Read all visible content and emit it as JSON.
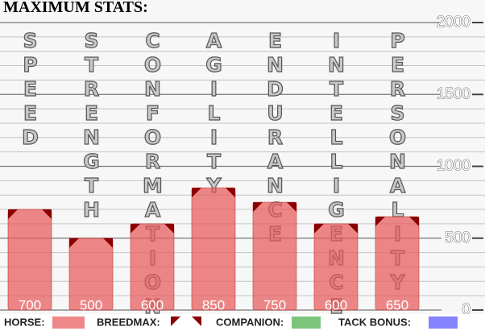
{
  "chart_data": {
    "type": "bar",
    "title": "MAXIMUM STATS:",
    "categories": [
      "SPEED",
      "STRENGTH",
      "CONFORMATION",
      "AGILITY",
      "ENDURANCE",
      "INTELLIGENCE",
      "PERSONALITY"
    ],
    "series": [
      {
        "name": "HORSE:",
        "color": "#e85a5a",
        "values": [
          700,
          500,
          600,
          850,
          750,
          600,
          650
        ]
      },
      {
        "name": "BREEDMAX:",
        "color": "#8b0000",
        "values": [
          700,
          500,
          600,
          850,
          750,
          600,
          650
        ]
      }
    ],
    "legend_only": [
      {
        "name": "COMPANION:",
        "color": "#7cc47c"
      },
      {
        "name": "TACK BONUS:",
        "color": "#8484ff"
      }
    ],
    "ylim": [
      0,
      2000
    ],
    "yticks": [
      0,
      500,
      1000,
      1500,
      2000
    ],
    "minor_yticks": [
      100,
      200,
      300,
      400,
      600,
      700,
      800,
      900,
      1100,
      1200,
      1300,
      1400,
      1600,
      1700,
      1800,
      1900
    ],
    "grid": true
  }
}
